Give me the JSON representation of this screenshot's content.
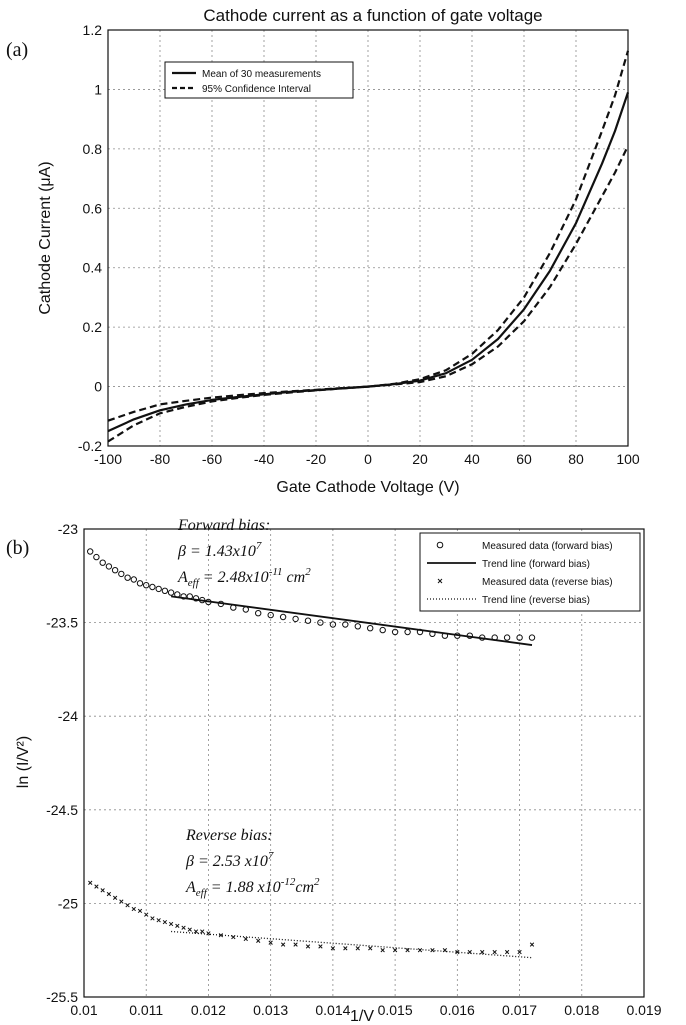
{
  "chart_data": [
    {
      "type": "line",
      "panel_label": "(a)",
      "title": "Cathode current as a function of gate voltage",
      "xlabel": "Gate Cathode Voltage (V)",
      "ylabel": "Cathode Current (μA)",
      "xlim": [
        -100,
        100
      ],
      "ylim": [
        -0.2,
        1.2
      ],
      "xticks": [
        "-100",
        "-80",
        "-60",
        "-40",
        "-20",
        "0",
        "20",
        "40",
        "60",
        "80",
        "100"
      ],
      "yticks": [
        "-0.2",
        "0",
        "0.2",
        "0.4",
        "0.6",
        "0.8",
        "1",
        "1.2"
      ],
      "grid": true,
      "legend_position": "top-left",
      "x": [
        -100,
        -90,
        -80,
        -70,
        -60,
        -50,
        -40,
        -30,
        -20,
        -10,
        0,
        10,
        20,
        30,
        40,
        50,
        60,
        70,
        80,
        90,
        95,
        100
      ],
      "series": [
        {
          "name": "Mean of 30 measurements",
          "style": "solid",
          "values": [
            -0.15,
            -0.11,
            -0.08,
            -0.06,
            -0.045,
            -0.035,
            -0.026,
            -0.018,
            -0.012,
            -0.006,
            0.0,
            0.008,
            0.02,
            0.045,
            0.09,
            0.16,
            0.26,
            0.39,
            0.55,
            0.75,
            0.86,
            0.99
          ]
        },
        {
          "name": "95% Confidence Interval",
          "style": "dashed",
          "values": [
            -0.185,
            -0.13,
            -0.09,
            -0.068,
            -0.05,
            -0.038,
            -0.028,
            -0.02,
            -0.013,
            -0.006,
            0.0,
            0.007,
            0.015,
            0.035,
            0.075,
            0.135,
            0.22,
            0.335,
            0.48,
            0.64,
            0.72,
            0.81
          ]
        },
        {
          "name": "",
          "style": "dashed",
          "values": [
            -0.115,
            -0.085,
            -0.06,
            -0.048,
            -0.037,
            -0.029,
            -0.022,
            -0.016,
            -0.011,
            -0.005,
            0.0,
            0.009,
            0.025,
            0.055,
            0.11,
            0.19,
            0.3,
            0.45,
            0.63,
            0.86,
            0.98,
            1.13
          ]
        }
      ]
    },
    {
      "type": "scatter",
      "panel_label": "(b)",
      "title": "",
      "xlabel": "1/V",
      "ylabel": "ln (I/V²)",
      "xlim": [
        0.01,
        0.019
      ],
      "ylim": [
        -25.5,
        -23
      ],
      "xticks": [
        "0.01",
        "0.011",
        "0.012",
        "0.013",
        "0.014",
        "0.015",
        "0.016",
        "0.017",
        "0.018",
        "0.019"
      ],
      "yticks": [
        "-23",
        "-23.5",
        "-24",
        "-24.5",
        "-25",
        "-25.5"
      ],
      "grid": true,
      "legend_position": "top-right",
      "series": [
        {
          "name": "Measured data (forward bias)",
          "marker": "circle",
          "x": [
            0.0101,
            0.0102,
            0.0103,
            0.0104,
            0.0105,
            0.0106,
            0.0107,
            0.0108,
            0.0109,
            0.011,
            0.0111,
            0.0112,
            0.0113,
            0.0114,
            0.0115,
            0.0116,
            0.0117,
            0.0118,
            0.0119,
            0.012,
            0.0122,
            0.0124,
            0.0126,
            0.0128,
            0.013,
            0.0132,
            0.0134,
            0.0136,
            0.0138,
            0.014,
            0.0142,
            0.0144,
            0.0146,
            0.0148,
            0.015,
            0.0152,
            0.0154,
            0.0156,
            0.0158,
            0.016,
            0.0162,
            0.0164,
            0.0166,
            0.0168,
            0.017,
            0.0172
          ],
          "y": [
            -23.12,
            -23.15,
            -23.18,
            -23.2,
            -23.22,
            -23.24,
            -23.26,
            -23.27,
            -23.29,
            -23.3,
            -23.31,
            -23.32,
            -23.33,
            -23.34,
            -23.35,
            -23.36,
            -23.36,
            -23.37,
            -23.38,
            -23.39,
            -23.4,
            -23.42,
            -23.43,
            -23.45,
            -23.46,
            -23.47,
            -23.48,
            -23.49,
            -23.5,
            -23.51,
            -23.51,
            -23.52,
            -23.53,
            -23.54,
            -23.55,
            -23.55,
            -23.55,
            -23.56,
            -23.57,
            -23.57,
            -23.57,
            -23.58,
            -23.58,
            -23.58,
            -23.58,
            -23.58
          ]
        },
        {
          "name": "Trend line (forward bias)",
          "line": "solid",
          "x": [
            0.0114,
            0.0172
          ],
          "y": [
            -23.36,
            -23.62
          ]
        },
        {
          "name": "Measured data (reverse bias)",
          "marker": "x",
          "x": [
            0.0101,
            0.0102,
            0.0103,
            0.0104,
            0.0105,
            0.0106,
            0.0107,
            0.0108,
            0.0109,
            0.011,
            0.0111,
            0.0112,
            0.0113,
            0.0114,
            0.0115,
            0.0116,
            0.0117,
            0.0118,
            0.0119,
            0.012,
            0.0122,
            0.0124,
            0.0126,
            0.0128,
            0.013,
            0.0132,
            0.0134,
            0.0136,
            0.0138,
            0.014,
            0.0142,
            0.0144,
            0.0146,
            0.0148,
            0.015,
            0.0152,
            0.0154,
            0.0156,
            0.0158,
            0.016,
            0.0162,
            0.0164,
            0.0166,
            0.0168,
            0.017,
            0.0172
          ],
          "y": [
            -24.89,
            -24.91,
            -24.93,
            -24.95,
            -24.97,
            -24.99,
            -25.01,
            -25.03,
            -25.04,
            -25.06,
            -25.08,
            -25.09,
            -25.1,
            -25.11,
            -25.12,
            -25.13,
            -25.14,
            -25.15,
            -25.15,
            -25.16,
            -25.17,
            -25.18,
            -25.19,
            -25.2,
            -25.21,
            -25.22,
            -25.22,
            -25.23,
            -25.23,
            -25.24,
            -25.24,
            -25.24,
            -25.24,
            -25.25,
            -25.25,
            -25.25,
            -25.25,
            -25.25,
            -25.25,
            -25.26,
            -25.26,
            -25.26,
            -25.26,
            -25.26,
            -25.26,
            -25.22
          ]
        },
        {
          "name": "Trend line (reverse bias)",
          "line": "dotted",
          "x": [
            0.0114,
            0.0172
          ],
          "y": [
            -25.15,
            -25.29
          ]
        }
      ],
      "annotations": [
        {
          "heading": "Forward bias:",
          "beta_label": "β = 1.43x10",
          "beta_exp": "7",
          "aeff_label": "A",
          "aeff_sub": "eff",
          "aeff_mid": " = 2.48x10",
          "aeff_exp": "-11",
          "aeff_unit": " cm",
          "aeff_unit_exp": "2"
        },
        {
          "heading": "Reverse bias:",
          "beta_label": "β = 2.53 x10",
          "beta_exp": "7",
          "aeff_label": "A",
          "aeff_sub": "eff",
          "aeff_mid": " = 1.88 x10",
          "aeff_exp": "-12",
          "aeff_unit": "cm",
          "aeff_unit_exp": "2"
        }
      ]
    }
  ]
}
